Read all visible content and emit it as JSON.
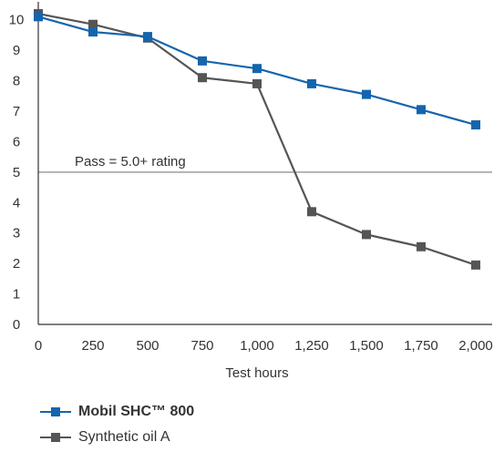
{
  "chart_data": {
    "type": "line",
    "x": [
      0,
      250,
      500,
      750,
      1000,
      1250,
      1500,
      1750,
      2000
    ],
    "x_tick_labels": [
      "0",
      "250",
      "500",
      "750",
      "1,000",
      "1,250",
      "1,500",
      "1,750",
      "2,000"
    ],
    "y_ticks": [
      0,
      1,
      2,
      3,
      4,
      5,
      6,
      7,
      8,
      9,
      10
    ],
    "xlabel": "Test hours",
    "ylabel": "",
    "xlim": [
      0,
      2000
    ],
    "ylim": [
      0,
      10.5
    ],
    "grid": false,
    "legend_position": "bottom-left",
    "series": [
      {
        "name": "Mobil SHC™ 800",
        "color": "#1565ad",
        "bold": true,
        "values": [
          10.1,
          9.6,
          9.45,
          8.65,
          8.4,
          7.9,
          7.55,
          7.05,
          6.55
        ]
      },
      {
        "name": "Synthetic oil A",
        "color": "#555555",
        "bold": false,
        "values": [
          10.2,
          9.85,
          9.4,
          8.1,
          7.9,
          3.7,
          2.95,
          2.55,
          1.95
        ]
      }
    ],
    "reference_line": {
      "value": 5,
      "label": "Pass = 5.0+ rating",
      "color": "#b3b3b3"
    }
  }
}
